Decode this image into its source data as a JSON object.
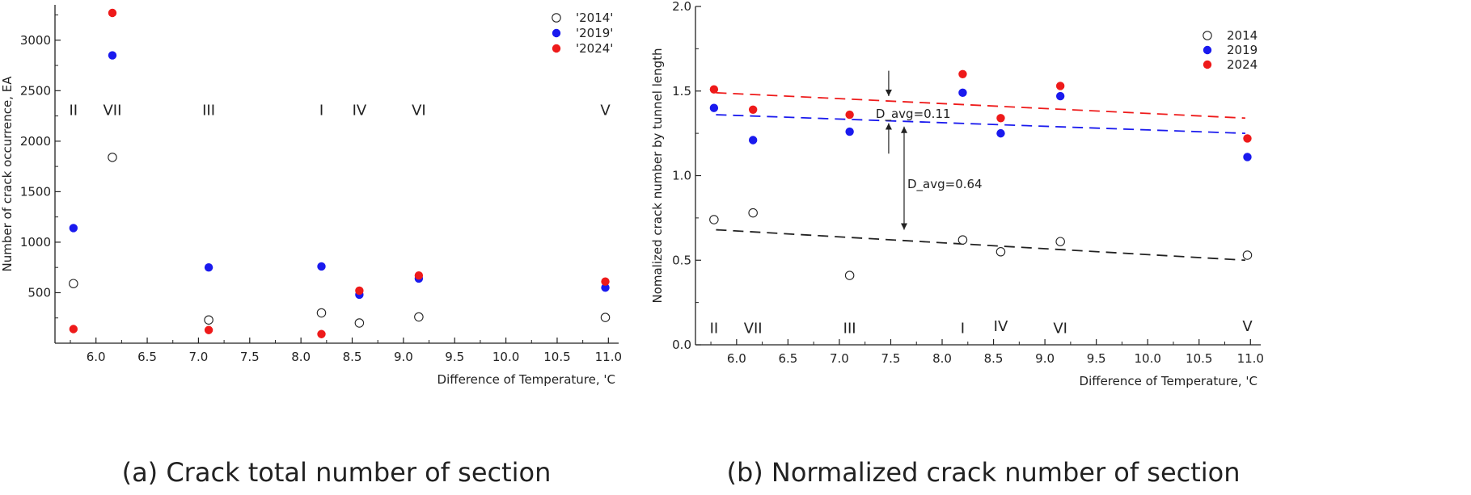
{
  "chart_data": [
    {
      "type": "scatter",
      "title": "",
      "caption": "(a) Crack total number of section",
      "xlabel": "Difference of Temperature, 'C",
      "ylabel": "Number of crack occurrence, EA",
      "xlim": [
        5.6,
        11.1
      ],
      "ylim": [
        0,
        3350
      ],
      "xticks": [
        6.0,
        6.5,
        7.0,
        7.5,
        8.0,
        8.5,
        9.0,
        9.5,
        10.0,
        10.5,
        11.0
      ],
      "xtick_labels": [
        "6.0",
        "6.5",
        "7.0",
        "7.5",
        "8.0",
        "8.5",
        "9.0",
        "9.5",
        "10.0",
        "10.5",
        "11.0"
      ],
      "yticks": [
        500,
        1000,
        1500,
        2000,
        2500,
        3000
      ],
      "ytick_labels": [
        "500",
        "1000",
        "1500",
        "2000",
        "2500",
        "3000"
      ],
      "grid": false,
      "legend_position": "top-right",
      "series": [
        {
          "name": "'2014'",
          "marker": "open-circle",
          "color": "#222222",
          "x": [
            5.78,
            6.16,
            7.1,
            8.2,
            8.57,
            9.15,
            10.97
          ],
          "y": [
            590,
            1840,
            230,
            300,
            200,
            260,
            255
          ]
        },
        {
          "name": "'2019'",
          "marker": "filled-circle",
          "color": "#1a1aee",
          "x": [
            5.78,
            6.16,
            7.1,
            8.2,
            8.57,
            9.15,
            10.97
          ],
          "y": [
            1140,
            2850,
            750,
            760,
            480,
            640,
            550
          ]
        },
        {
          "name": "'2024'",
          "marker": "filled-circle",
          "color": "#ee1a1a",
          "x": [
            5.78,
            6.16,
            7.1,
            8.2,
            8.57,
            9.15,
            10.97
          ],
          "y": [
            140,
            3270,
            130,
            90,
            520,
            670,
            610
          ]
        }
      ],
      "section_labels": [
        {
          "text": "II",
          "x": 5.78,
          "y": 2260
        },
        {
          "text": "VII",
          "x": 6.16,
          "y": 2260
        },
        {
          "text": "III",
          "x": 7.1,
          "y": 2260
        },
        {
          "text": "I",
          "x": 8.2,
          "y": 2260
        },
        {
          "text": "IV",
          "x": 8.57,
          "y": 2260
        },
        {
          "text": "VI",
          "x": 9.15,
          "y": 2260
        },
        {
          "text": "V",
          "x": 10.97,
          "y": 2260
        }
      ]
    },
    {
      "type": "scatter",
      "title": "",
      "caption": "(b) Normalized crack number of section",
      "xlabel": "Difference of Temperature, 'C",
      "ylabel": "Nomalized crack number by tunnel length",
      "xlim": [
        5.6,
        11.1
      ],
      "ylim": [
        0.0,
        2.0
      ],
      "xticks": [
        6.0,
        6.5,
        7.0,
        7.5,
        8.0,
        8.5,
        9.0,
        9.5,
        10.0,
        10.5,
        11.0
      ],
      "xtick_labels": [
        "6.0",
        "6.5",
        "7.0",
        "7.5",
        "8.0",
        "8.5",
        "9.0",
        "9.5",
        "10.0",
        "10.5",
        "11.0"
      ],
      "yticks": [
        0.0,
        0.5,
        1.0,
        1.5,
        2.0
      ],
      "ytick_labels": [
        "0.0",
        "0.5",
        "1.0",
        "1.5",
        "2.0"
      ],
      "grid": false,
      "legend_position": "top-right",
      "series": [
        {
          "name": "2014",
          "marker": "open-circle",
          "color": "#222222",
          "x": [
            5.78,
            6.16,
            7.1,
            8.2,
            8.57,
            9.15,
            10.97
          ],
          "y": [
            0.74,
            0.78,
            0.41,
            0.62,
            0.55,
            0.61,
            0.53
          ]
        },
        {
          "name": "2019",
          "marker": "filled-circle",
          "color": "#1a1aee",
          "x": [
            5.78,
            6.16,
            7.1,
            8.2,
            8.57,
            9.15,
            10.97
          ],
          "y": [
            1.4,
            1.21,
            1.26,
            1.49,
            1.25,
            1.47,
            1.11
          ]
        },
        {
          "name": "2024",
          "marker": "filled-circle",
          "color": "#ee1a1a",
          "x": [
            5.78,
            6.16,
            7.1,
            8.2,
            8.57,
            9.15,
            10.97
          ],
          "y": [
            1.51,
            1.39,
            1.36,
            1.6,
            1.34,
            1.53,
            1.22
          ]
        }
      ],
      "trendlines": [
        {
          "color": "#222222",
          "x": [
            5.8,
            10.95
          ],
          "y": [
            0.68,
            0.5
          ]
        },
        {
          "color": "#1a1aee",
          "x": [
            5.8,
            10.95
          ],
          "y": [
            1.36,
            1.25
          ]
        },
        {
          "color": "#ee1a1a",
          "x": [
            5.8,
            10.95
          ],
          "y": [
            1.49,
            1.34
          ]
        }
      ],
      "annotations": [
        {
          "text": "D_avg=0.11",
          "x": 7.48,
          "y": 1.365
        },
        {
          "text": "D_avg=0.64",
          "x": 7.63,
          "y": 0.95
        }
      ],
      "section_labels": [
        {
          "text": "II",
          "x": 5.78,
          "y": 0.07
        },
        {
          "text": "VII",
          "x": 6.16,
          "y": 0.07
        },
        {
          "text": "III",
          "x": 7.1,
          "y": 0.07
        },
        {
          "text": "I",
          "x": 8.2,
          "y": 0.07
        },
        {
          "text": "IV",
          "x": 8.57,
          "y": 0.08
        },
        {
          "text": "VI",
          "x": 9.15,
          "y": 0.07
        },
        {
          "text": "V",
          "x": 10.97,
          "y": 0.08
        }
      ]
    }
  ]
}
